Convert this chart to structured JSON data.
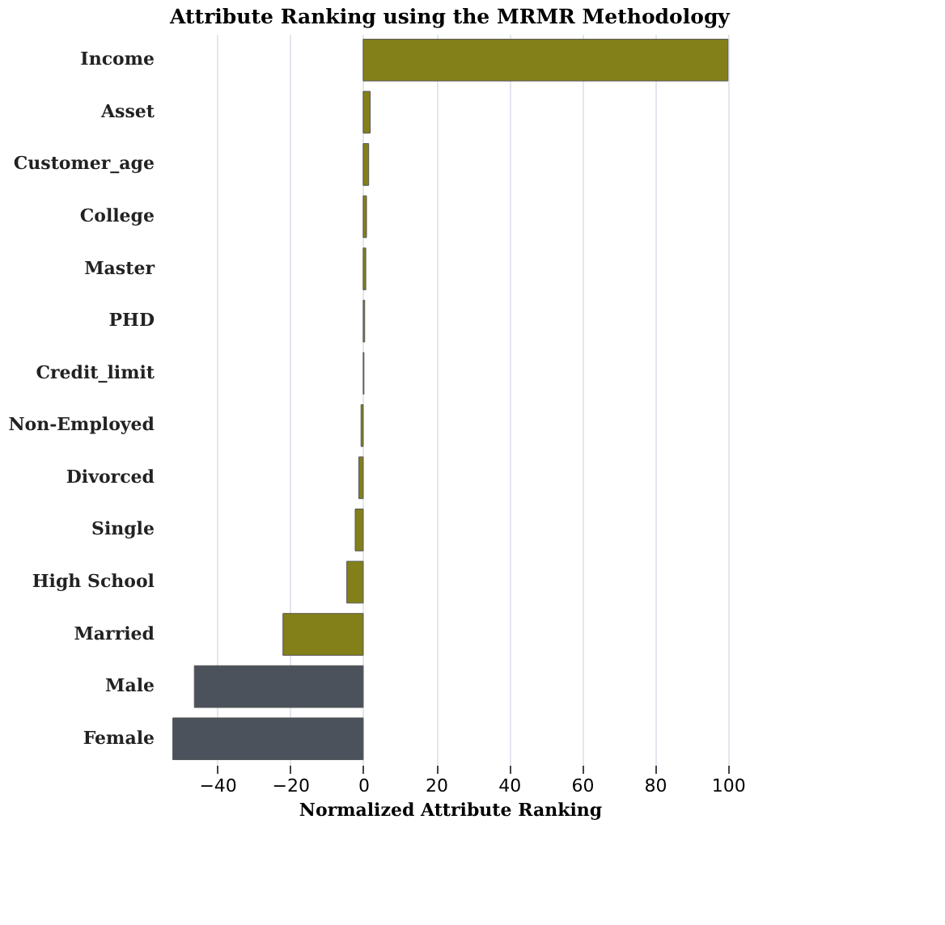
{
  "chart_data": {
    "type": "bar",
    "orientation": "horizontal",
    "title": "Attribute Ranking using the MRMR Methodology",
    "xlabel": "Normalized Attribute Ranking",
    "categories": [
      "Income",
      "Asset",
      "Customer_age",
      "College",
      "Master",
      "PHD",
      "Credit_limit",
      "Non-Employed",
      "Divorced",
      "Single",
      "High School",
      "Married",
      "Male",
      "Female"
    ],
    "values": [
      100,
      1.9,
      1.5,
      0.9,
      0.7,
      0.4,
      0.2,
      -0.6,
      -1.2,
      -2.2,
      -4.5,
      -22,
      -46.3,
      -52.2
    ],
    "colors": [
      "#838019",
      "#838019",
      "#838019",
      "#838019",
      "#838019",
      "#838019",
      "#838019",
      "#838019",
      "#838019",
      "#838019",
      "#838019",
      "#838019",
      "#4b525c",
      "#4b525c"
    ],
    "xlim": [
      -53,
      100.5
    ],
    "xticks": [
      -40,
      -20,
      0,
      20,
      40,
      60,
      80,
      100
    ],
    "grid": "x"
  }
}
